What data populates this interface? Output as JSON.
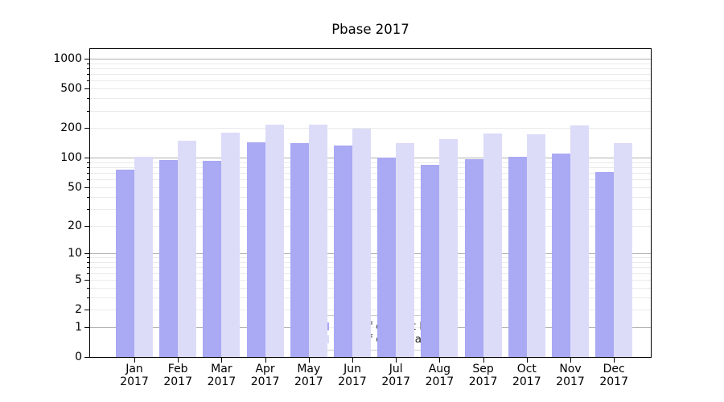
{
  "chart_data": {
    "type": "bar",
    "title": "Pbase 2017",
    "categories": [
      "Jan 2017",
      "Feb 2017",
      "Mar 2017",
      "Apr 2017",
      "May 2017",
      "Jun 2017",
      "Jul 2017",
      "Aug 2017",
      "Sep 2017",
      "Oct 2017",
      "Nov 2017",
      "Dec 2017"
    ],
    "series": [
      {
        "key": "distinct-ips",
        "name": "Nb of distinct IPs",
        "color": "#a9a9f4",
        "values": [
          76,
          95,
          93,
          143,
          140,
          133,
          100,
          84,
          97,
          102,
          110,
          72
        ]
      },
      {
        "key": "downloads",
        "name": "Nb of downloads",
        "color": "#dcdcf9",
        "values": [
          102,
          148,
          181,
          218,
          217,
          198,
          140,
          156,
          175,
          172,
          212,
          141
        ]
      }
    ],
    "xlabel": "",
    "ylabel": "",
    "y_axis": {
      "scale": "log1p",
      "range": [
        0,
        1250
      ],
      "tick_labels": [
        0,
        1,
        2,
        5,
        10,
        20,
        50,
        100,
        200,
        500,
        1000
      ],
      "major_gridlines": [
        1,
        10,
        100,
        1000
      ],
      "minor_gridlines": [
        2,
        3,
        4,
        5,
        6,
        7,
        8,
        9,
        20,
        30,
        40,
        50,
        60,
        70,
        80,
        90,
        200,
        300,
        400,
        500,
        600,
        700,
        800,
        900
      ]
    },
    "grid": true,
    "legend": {
      "position": "lower-center-inside",
      "entries": [
        "Nb of distinct IPs",
        "Nb of downloads"
      ]
    }
  }
}
